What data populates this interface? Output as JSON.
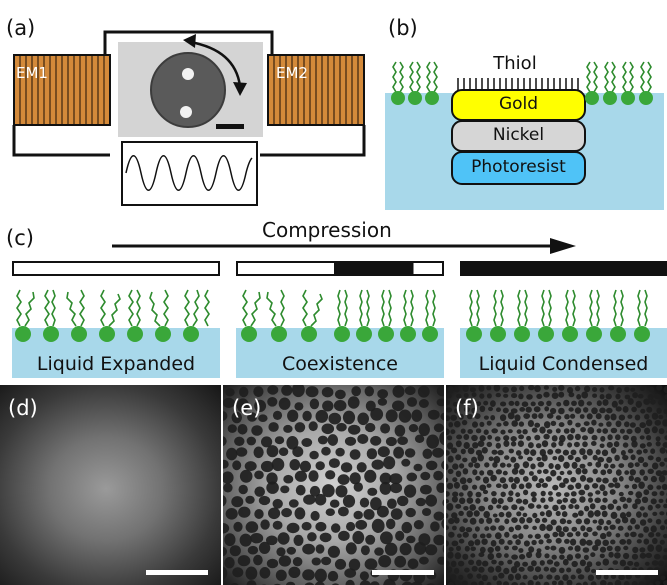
{
  "panels": {
    "a": {
      "label": "(a)",
      "coil_left": "EM1",
      "coil_right": "EM2"
    },
    "b": {
      "label": "(b)",
      "thiol": "Thiol",
      "layers": [
        "Gold",
        "Nickel",
        "Photoresist"
      ]
    },
    "c": {
      "label": "(c)",
      "arrow_label": "Compression",
      "phases": [
        "Liquid Expanded",
        "Coexistence",
        "Liquid Condensed"
      ]
    },
    "d": {
      "label": "(d)"
    },
    "e": {
      "label": "(e)"
    },
    "f": {
      "label": "(f)"
    }
  },
  "colors": {
    "coil": "#d48a3a",
    "water": "#a8d8ea",
    "gold": "#ffff00",
    "nickel": "#d6d6d6",
    "photoresist": "#4fc3f7",
    "lipid_head": "#3aa73a",
    "lipid_tail": "#2e8b2e"
  }
}
